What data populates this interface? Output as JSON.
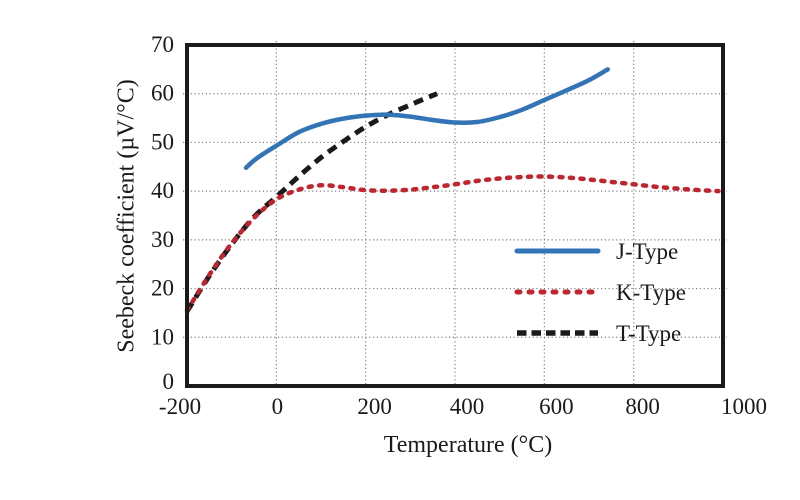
{
  "chart_data": {
    "type": "line",
    "title": "",
    "xlabel": "Temperature (°C)",
    "ylabel": "Seebeck coefficient (µV/°C)",
    "xlim": [
      -200,
      1000
    ],
    "ylim": [
      0,
      70
    ],
    "x_ticks": [
      "-200",
      "0",
      "200",
      "400",
      "600",
      "800",
      "1000"
    ],
    "x_tick_values": [
      -200,
      0,
      200,
      400,
      600,
      800,
      1000
    ],
    "y_ticks": [
      "0",
      "10",
      "20",
      "30",
      "40",
      "50",
      "60",
      "70"
    ],
    "y_tick_values": [
      0,
      10,
      20,
      30,
      40,
      50,
      60,
      70
    ],
    "grid": true,
    "grid_style": "dotted",
    "legend_position": "inside-right",
    "series": [
      {
        "name": "J-Type",
        "color": "#3274B5",
        "style": "solid",
        "points": [
          [
            -68,
            44.8
          ],
          [
            -50,
            46.3
          ],
          [
            -25,
            47.9
          ],
          [
            0,
            49.3
          ],
          [
            50,
            52.1
          ],
          [
            100,
            53.8
          ],
          [
            150,
            54.9
          ],
          [
            200,
            55.5
          ],
          [
            250,
            55.7
          ],
          [
            300,
            55.3
          ],
          [
            350,
            54.6
          ],
          [
            400,
            54.1
          ],
          [
            450,
            54.2
          ],
          [
            500,
            55.2
          ],
          [
            550,
            56.7
          ],
          [
            600,
            58.7
          ],
          [
            650,
            60.7
          ],
          [
            700,
            62.8
          ],
          [
            742,
            65
          ]
        ]
      },
      {
        "name": "K-Type",
        "color": "#C0242E",
        "style": "dotted",
        "points": [
          [
            -200,
            15.5
          ],
          [
            -150,
            22.8
          ],
          [
            -100,
            29.3
          ],
          [
            -50,
            34.5
          ],
          [
            0,
            38.3
          ],
          [
            50,
            40.3
          ],
          [
            100,
            41.2
          ],
          [
            150,
            40.8
          ],
          [
            200,
            40.2
          ],
          [
            250,
            40.1
          ],
          [
            300,
            40.3
          ],
          [
            350,
            40.8
          ],
          [
            400,
            41.4
          ],
          [
            450,
            42.1
          ],
          [
            500,
            42.6
          ],
          [
            550,
            42.9
          ],
          [
            600,
            43
          ],
          [
            650,
            42.8
          ],
          [
            700,
            42.4
          ],
          [
            750,
            41.9
          ],
          [
            800,
            41.4
          ],
          [
            850,
            40.9
          ],
          [
            900,
            40.5
          ],
          [
            950,
            40.2
          ],
          [
            990,
            40
          ]
        ]
      },
      {
        "name": "T-Type",
        "color": "#1A1A1A",
        "style": "dashed",
        "points": [
          [
            -200,
            15.3
          ],
          [
            -150,
            22.6
          ],
          [
            -100,
            29.1
          ],
          [
            -50,
            34.7
          ],
          [
            0,
            38.8
          ],
          [
            50,
            43
          ],
          [
            100,
            46.9
          ],
          [
            150,
            50.2
          ],
          [
            200,
            53.2
          ],
          [
            250,
            55.7
          ],
          [
            300,
            57.7
          ],
          [
            330,
            58.9
          ],
          [
            360,
            60
          ]
        ]
      }
    ],
    "colors": {
      "axis": "#1a1a1a",
      "grid": "#808080",
      "text": "#1a1a1a",
      "background": "#ffffff"
    }
  }
}
